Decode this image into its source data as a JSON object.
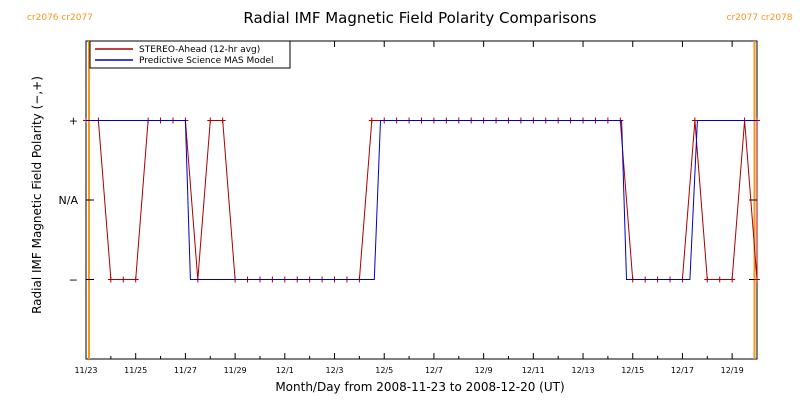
{
  "chart_data": {
    "type": "line",
    "title": "Radial IMF Magnetic Field Polarity Comparisons",
    "xlabel": "Month/Day from 2008-11-23 to 2008-12-20 (UT)",
    "ylabel": "Radial IMF Magnetic Field Polarity (−,+)",
    "x_range": [
      0,
      27
    ],
    "y_range": [
      -2,
      2
    ],
    "y_ticks": [
      {
        "value": 1,
        "label": "+"
      },
      {
        "value": 0,
        "label": "N/A"
      },
      {
        "value": -1,
        "label": "−"
      }
    ],
    "x_ticks": [
      {
        "value": 0,
        "label": "11/23"
      },
      {
        "value": 2,
        "label": "11/25"
      },
      {
        "value": 4,
        "label": "11/27"
      },
      {
        "value": 6,
        "label": "11/29"
      },
      {
        "value": 8,
        "label": "12/1"
      },
      {
        "value": 10,
        "label": "12/3"
      },
      {
        "value": 12,
        "label": "12/5"
      },
      {
        "value": 14,
        "label": "12/7"
      },
      {
        "value": 16,
        "label": "12/9"
      },
      {
        "value": 18,
        "label": "12/11"
      },
      {
        "value": 20,
        "label": "12/13"
      },
      {
        "value": 22,
        "label": "12/15"
      },
      {
        "value": 24,
        "label": "12/17"
      },
      {
        "value": 26,
        "label": "12/19"
      }
    ],
    "carrington_markers": [
      {
        "x": 0.12,
        "label": "cr2076 cr2077"
      },
      {
        "x": 26.9,
        "label": "cr2077 cr2078"
      }
    ],
    "legend_position": "top-left",
    "series": [
      {
        "name": "STEREO-Ahead (12-hr avg)",
        "color": "#aa0000",
        "marker": "plus",
        "points": [
          [
            0,
            1
          ],
          [
            0.5,
            1
          ],
          [
            1,
            -1
          ],
          [
            1.5,
            -1
          ],
          [
            2,
            -1
          ],
          [
            2.5,
            1
          ],
          [
            3,
            1
          ],
          [
            3.5,
            1
          ],
          [
            4,
            1
          ],
          [
            4.5,
            -1
          ],
          [
            5,
            1
          ],
          [
            5.5,
            1
          ],
          [
            6,
            -1
          ],
          [
            6.5,
            -1
          ],
          [
            7,
            -1
          ],
          [
            7.5,
            -1
          ],
          [
            8,
            -1
          ],
          [
            8.5,
            -1
          ],
          [
            9,
            -1
          ],
          [
            9.5,
            -1
          ],
          [
            10,
            -1
          ],
          [
            10.5,
            -1
          ],
          [
            11,
            -1
          ],
          [
            11.5,
            1
          ],
          [
            12,
            1
          ],
          [
            12.5,
            1
          ],
          [
            13,
            1
          ],
          [
            13.5,
            1
          ],
          [
            14,
            1
          ],
          [
            14.5,
            1
          ],
          [
            15,
            1
          ],
          [
            15.5,
            1
          ],
          [
            16,
            1
          ],
          [
            16.5,
            1
          ],
          [
            17,
            1
          ],
          [
            17.5,
            1
          ],
          [
            18,
            1
          ],
          [
            18.5,
            1
          ],
          [
            19,
            1
          ],
          [
            19.5,
            1
          ],
          [
            20,
            1
          ],
          [
            20.5,
            1
          ],
          [
            21,
            1
          ],
          [
            21.5,
            1
          ],
          [
            22,
            -1
          ],
          [
            22.5,
            -1
          ],
          [
            23,
            -1
          ],
          [
            23.5,
            -1
          ],
          [
            24,
            -1
          ],
          [
            24.5,
            1
          ],
          [
            25,
            -1
          ],
          [
            25.5,
            -1
          ],
          [
            26,
            -1
          ],
          [
            26.5,
            1
          ],
          [
            27,
            -1
          ],
          [
            27.5,
            1
          ],
          [
            28,
            1
          ]
        ]
      },
      {
        "name": "Predictive Science MAS Model",
        "color": "#0000cc",
        "marker": "none",
        "points": [
          [
            0,
            1
          ],
          [
            4,
            1
          ],
          [
            4.2,
            -1
          ],
          [
            11.6,
            -1
          ],
          [
            11.85,
            1
          ],
          [
            21.55,
            1
          ],
          [
            21.75,
            -1
          ],
          [
            24.3,
            -1
          ],
          [
            24.6,
            1
          ],
          [
            28,
            1
          ]
        ]
      }
    ]
  }
}
